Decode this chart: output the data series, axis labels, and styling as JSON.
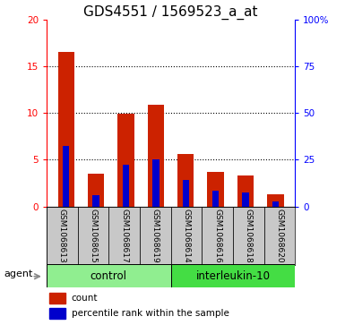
{
  "title": "GDS4551 / 1569523_a_at",
  "samples": [
    "GSM1068613",
    "GSM1068615",
    "GSM1068617",
    "GSM1068619",
    "GSM1068614",
    "GSM1068616",
    "GSM1068618",
    "GSM1068620"
  ],
  "count_values": [
    16.5,
    3.5,
    9.9,
    10.9,
    5.6,
    3.7,
    3.3,
    1.3
  ],
  "percentile_values": [
    32.5,
    6.0,
    22.5,
    25.0,
    14.0,
    8.5,
    7.5,
    2.5
  ],
  "ylim_left": [
    0,
    20
  ],
  "ylim_right": [
    0,
    100
  ],
  "yticks_left": [
    0,
    5,
    10,
    15,
    20
  ],
  "yticks_right": [
    0,
    25,
    50,
    75,
    100
  ],
  "ytick_labels_right": [
    "0",
    "25",
    "50",
    "75",
    "100%"
  ],
  "group_labels": [
    "control",
    "interleukin-10"
  ],
  "group_color_light": "#b3ffb3",
  "group_color_dark": "#44ee44",
  "agent_label": "agent",
  "bar_color": "#CC2200",
  "percentile_color": "#0000CC",
  "bar_width": 0.55,
  "percentile_bar_width": 0.22,
  "sample_bg": "#C8C8C8",
  "plot_bg": "#FFFFFF",
  "title_fontsize": 11,
  "tick_fontsize": 7.5,
  "legend_items": [
    "count",
    "percentile rank within the sample"
  ]
}
